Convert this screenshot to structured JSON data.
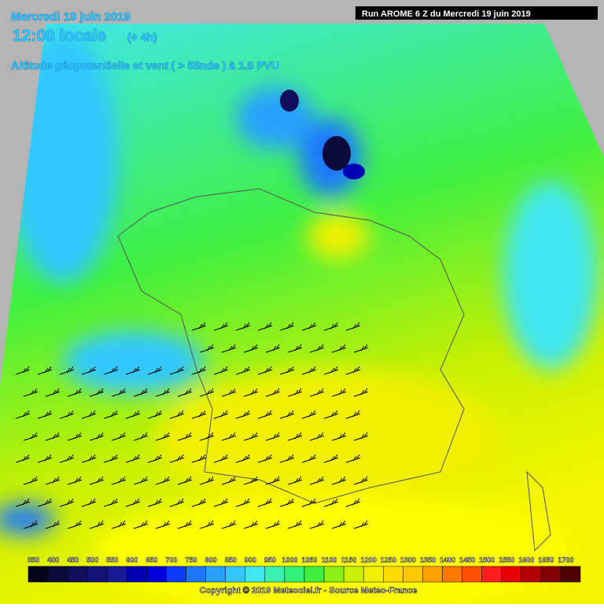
{
  "header": {
    "date": "Mercredi 19 juin 2019",
    "time": "12:00 locale",
    "offset": "(+ 4h)",
    "parameter": "Altitude géopotentielle et vent ( > 55nds ) à 1.5 PVU",
    "run": "Run AROME 6 Z du Mercredi 19 juin 2019"
  },
  "legend": {
    "items": [
      {
        "label": 350,
        "color": "#05051e"
      },
      {
        "label": 400,
        "color": "#0a0a3c"
      },
      {
        "label": 450,
        "color": "#0f0f5a"
      },
      {
        "label": 500,
        "color": "#141478"
      },
      {
        "label": 550,
        "color": "#1a1a96"
      },
      {
        "label": 600,
        "color": "#0000b4"
      },
      {
        "label": 650,
        "color": "#0000dc"
      },
      {
        "label": 700,
        "color": "#0a3cff"
      },
      {
        "label": 750,
        "color": "#1e78ff"
      },
      {
        "label": 800,
        "color": "#28a0ff"
      },
      {
        "label": 850,
        "color": "#32c8ff"
      },
      {
        "label": 900,
        "color": "#40e6f0"
      },
      {
        "label": 950,
        "color": "#3cf0b4"
      },
      {
        "label": 1000,
        "color": "#32f078"
      },
      {
        "label": 1050,
        "color": "#40f040"
      },
      {
        "label": 1100,
        "color": "#8cf014"
      },
      {
        "label": 1150,
        "color": "#c8f000"
      },
      {
        "label": 1200,
        "color": "#f0f000"
      },
      {
        "label": 1250,
        "color": "#ffdc00"
      },
      {
        "label": 1300,
        "color": "#ffc800"
      },
      {
        "label": 1350,
        "color": "#ffa000"
      },
      {
        "label": 1400,
        "color": "#ff7800"
      },
      {
        "label": 1450,
        "color": "#ff5000"
      },
      {
        "label": 1500,
        "color": "#ff1e1e"
      },
      {
        "label": 1550,
        "color": "#e60000"
      },
      {
        "label": 1600,
        "color": "#b40000"
      },
      {
        "label": 1650,
        "color": "#820000"
      },
      {
        "label": 1700,
        "color": "#500000"
      }
    ]
  },
  "footer": {
    "copyright": "Copyright © 2019 Meteociel.fr - Source Meteo-France"
  }
}
